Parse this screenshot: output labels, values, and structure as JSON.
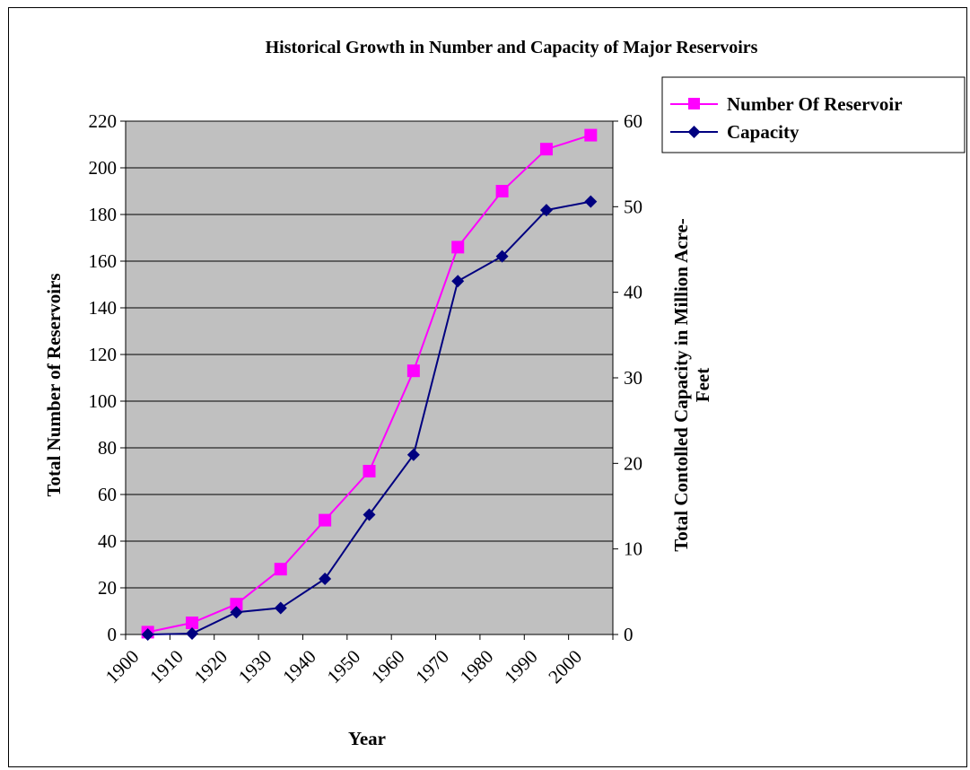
{
  "chart_data": {
    "type": "line",
    "title": "Historical Growth in Number and Capacity of Major Reservoirs",
    "xlabel": "Year",
    "ylabel_left": "Total Number of Reservoirs",
    "ylabel_right_line1": "Total Contolled Capacity in Million Acre-",
    "ylabel_right_line2": "Feet",
    "x_tick_labels": [
      "1900",
      "1910",
      "1920",
      "1930",
      "1940",
      "1950",
      "1960",
      "1970",
      "1980",
      "1990",
      "2000"
    ],
    "x_points": [
      1900,
      1910,
      1920,
      1930,
      1940,
      1950,
      1960,
      1970,
      1980,
      1990,
      2000
    ],
    "ylim_left": [
      0,
      220
    ],
    "ylim_right": [
      0,
      60
    ],
    "y_left_ticks": [
      0,
      20,
      40,
      60,
      80,
      100,
      120,
      140,
      160,
      180,
      200,
      220
    ],
    "y_right_ticks": [
      0,
      10,
      20,
      30,
      40,
      50,
      60
    ],
    "grid": "horizontal",
    "legend_position": "top-right",
    "series": [
      {
        "name": "Number Of Reservoir",
        "axis": "left",
        "color": "#ff00ff",
        "marker": "square",
        "values": [
          1,
          5,
          13,
          28,
          49,
          70,
          113,
          166,
          190,
          208,
          214
        ]
      },
      {
        "name": "Capacity",
        "axis": "right",
        "color": "#000080",
        "marker": "diamond",
        "values": [
          0,
          0.1,
          2.6,
          3.1,
          6.5,
          14,
          21,
          41.3,
          44.2,
          49.6,
          50.6
        ]
      }
    ],
    "plot_background": "#c0c0c0"
  }
}
